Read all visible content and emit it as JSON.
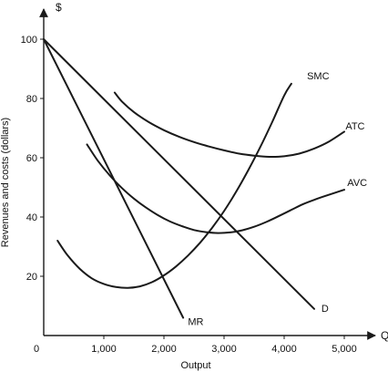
{
  "chart_data": {
    "type": "line",
    "title": "",
    "xlabel": "Output",
    "ylabel": "Revenues and costs (dollars)",
    "x_axis_end_label": "Q",
    "y_axis_end_label": "$",
    "origin_label": "0",
    "xlim": [
      0,
      5800
    ],
    "ylim": [
      0,
      108
    ],
    "x_ticks": [
      {
        "value": 1000,
        "label": "1,000"
      },
      {
        "value": 2000,
        "label": "2,000"
      },
      {
        "value": 3000,
        "label": "3,000"
      },
      {
        "value": 4000,
        "label": "4,000"
      },
      {
        "value": 5000,
        "label": "5,000"
      }
    ],
    "y_ticks": [
      {
        "value": 20,
        "label": "20"
      },
      {
        "value": 40,
        "label": "40"
      },
      {
        "value": 60,
        "label": "60"
      },
      {
        "value": 80,
        "label": "80"
      },
      {
        "value": 100,
        "label": "100"
      }
    ],
    "grid": false,
    "series": [
      {
        "name": "D",
        "label_anchor": [
          4620,
          8
        ],
        "points": [
          [
            0,
            100
          ],
          [
            4500,
            9
          ]
        ]
      },
      {
        "name": "MR",
        "label_anchor": [
          2400,
          3.5
        ],
        "points": [
          [
            0,
            100
          ],
          [
            2320,
            6
          ]
        ]
      },
      {
        "name": "SMC",
        "label_anchor": [
          4380,
          86.5
        ],
        "points": [
          [
            230,
            32
          ],
          [
            400,
            27
          ],
          [
            600,
            22.5
          ],
          [
            800,
            19.3
          ],
          [
            1000,
            17.4
          ],
          [
            1200,
            16.4
          ],
          [
            1400,
            16.1
          ],
          [
            1600,
            16.6
          ],
          [
            1800,
            18
          ],
          [
            2000,
            20.3
          ],
          [
            2200,
            23.3
          ],
          [
            2400,
            27
          ],
          [
            2600,
            31.3
          ],
          [
            2800,
            36.3
          ],
          [
            3000,
            42
          ],
          [
            3200,
            48.5
          ],
          [
            3400,
            55.7
          ],
          [
            3600,
            63.5
          ],
          [
            3800,
            72
          ],
          [
            4000,
            81
          ],
          [
            4120,
            85
          ]
        ]
      },
      {
        "name": "ATC",
        "label_anchor": [
          5020,
          69.5
        ],
        "points": [
          [
            1180,
            82
          ],
          [
            1300,
            79
          ],
          [
            1500,
            75.4
          ],
          [
            1750,
            72
          ],
          [
            2000,
            69.3
          ],
          [
            2250,
            67.1
          ],
          [
            2500,
            65.3
          ],
          [
            2750,
            63.8
          ],
          [
            3000,
            62.5
          ],
          [
            3250,
            61.4
          ],
          [
            3500,
            60.7
          ],
          [
            3750,
            60.3
          ],
          [
            4000,
            60.5
          ],
          [
            4250,
            61.4
          ],
          [
            4500,
            63.1
          ],
          [
            4750,
            65.5
          ],
          [
            5000,
            68.8
          ]
        ]
      },
      {
        "name": "AVC",
        "label_anchor": [
          5050,
          50.5
        ],
        "points": [
          [
            720,
            64.5
          ],
          [
            900,
            59
          ],
          [
            1100,
            54
          ],
          [
            1300,
            49.8
          ],
          [
            1500,
            46.2
          ],
          [
            1700,
            43.2
          ],
          [
            1900,
            40.6
          ],
          [
            2100,
            38.5
          ],
          [
            2300,
            36.9
          ],
          [
            2500,
            35.6
          ],
          [
            2700,
            34.9
          ],
          [
            2900,
            34.6
          ],
          [
            3100,
            34.8
          ],
          [
            3300,
            35.5
          ],
          [
            3500,
            36.7
          ],
          [
            3700,
            38.3
          ],
          [
            3900,
            40.2
          ],
          [
            4100,
            42.2
          ],
          [
            4300,
            44.2
          ],
          [
            4500,
            45.8
          ],
          [
            4700,
            47.2
          ],
          [
            5000,
            49.2
          ]
        ]
      }
    ]
  }
}
